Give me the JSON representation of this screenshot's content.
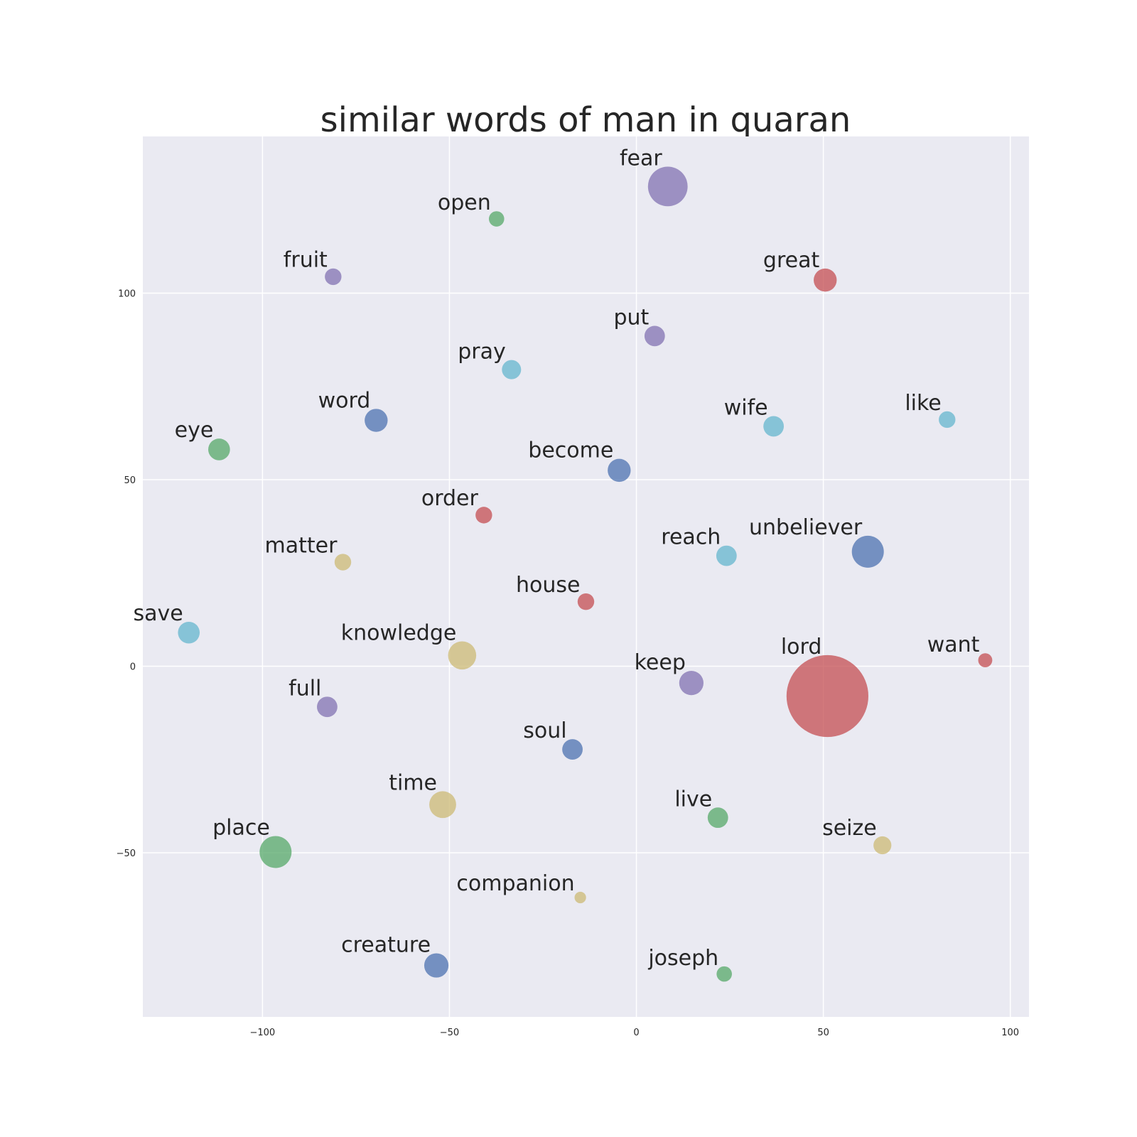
{
  "chart_data": {
    "type": "scatter",
    "title": "similar words of man in quaran",
    "xlabel": "",
    "ylabel": "",
    "xlim": [
      -132,
      105
    ],
    "ylim": [
      -94,
      142
    ],
    "x_ticks": [
      -100,
      -50,
      0,
      50,
      100
    ],
    "y_ticks": [
      -50,
      0,
      50,
      100
    ],
    "x_tick_labels": [
      "−100",
      "−50",
      "0",
      "50",
      "100"
    ],
    "y_tick_labels": [
      "−50",
      "0",
      "50",
      "100"
    ],
    "grid": true,
    "colors": {
      "blue": "#4c72b0",
      "green": "#55a868",
      "red": "#c44e52",
      "purple": "#8172b2",
      "yellow": "#ccb974",
      "cyan": "#64b5cd",
      "background": "#eaeaf2",
      "grid": "#ffffff",
      "text": "#262626"
    },
    "points": [
      {
        "label": "fear",
        "x": 8.4,
        "y": 128.6,
        "size": 3.1,
        "color": "purple"
      },
      {
        "label": "open",
        "x": -37.4,
        "y": 119.9,
        "size": 1.2,
        "color": "green"
      },
      {
        "label": "fruit",
        "x": -81.1,
        "y": 104.4,
        "size": 1.3,
        "color": "purple"
      },
      {
        "label": "great",
        "x": 50.5,
        "y": 103.5,
        "size": 1.8,
        "color": "red"
      },
      {
        "label": "put",
        "x": 4.9,
        "y": 88.5,
        "size": 1.6,
        "color": "purple"
      },
      {
        "label": "pray",
        "x": -33.4,
        "y": 79.5,
        "size": 1.5,
        "color": "cyan"
      },
      {
        "label": "word",
        "x": -69.6,
        "y": 65.9,
        "size": 1.8,
        "color": "blue"
      },
      {
        "label": "wife",
        "x": 36.7,
        "y": 64.3,
        "size": 1.6,
        "color": "cyan"
      },
      {
        "label": "like",
        "x": 83.1,
        "y": 66.1,
        "size": 1.3,
        "color": "cyan"
      },
      {
        "label": "eye",
        "x": -111.6,
        "y": 58.1,
        "size": 1.7,
        "color": "green"
      },
      {
        "label": "become",
        "x": -4.6,
        "y": 52.5,
        "size": 1.8,
        "color": "blue"
      },
      {
        "label": "order",
        "x": -40.8,
        "y": 40.5,
        "size": 1.3,
        "color": "red"
      },
      {
        "label": "matter",
        "x": -78.5,
        "y": 27.9,
        "size": 1.3,
        "color": "yellow"
      },
      {
        "label": "reach",
        "x": 24.1,
        "y": 29.6,
        "size": 1.6,
        "color": "cyan"
      },
      {
        "label": "unbeliever",
        "x": 61.9,
        "y": 30.7,
        "size": 2.5,
        "color": "blue"
      },
      {
        "label": "house",
        "x": -13.5,
        "y": 17.3,
        "size": 1.3,
        "color": "red"
      },
      {
        "label": "save",
        "x": -119.7,
        "y": 9.0,
        "size": 1.7,
        "color": "cyan"
      },
      {
        "label": "knowledge",
        "x": -46.6,
        "y": 2.9,
        "size": 2.2,
        "color": "yellow"
      },
      {
        "label": "want",
        "x": 93.3,
        "y": 1.6,
        "size": 1.1,
        "color": "red"
      },
      {
        "label": "keep",
        "x": 14.7,
        "y": -4.5,
        "size": 1.9,
        "color": "purple"
      },
      {
        "label": "lord",
        "x": 51.1,
        "y": -8.0,
        "size": 6.4,
        "color": "red"
      },
      {
        "label": "full",
        "x": -82.7,
        "y": -10.9,
        "size": 1.6,
        "color": "purple"
      },
      {
        "label": "soul",
        "x": -17.1,
        "y": -22.3,
        "size": 1.6,
        "color": "blue"
      },
      {
        "label": "time",
        "x": -51.8,
        "y": -37.1,
        "size": 2.1,
        "color": "yellow"
      },
      {
        "label": "live",
        "x": 21.8,
        "y": -40.6,
        "size": 1.6,
        "color": "green"
      },
      {
        "label": "seize",
        "x": 65.8,
        "y": -48.0,
        "size": 1.4,
        "color": "yellow"
      },
      {
        "label": "place",
        "x": -96.5,
        "y": -49.8,
        "size": 2.5,
        "color": "green"
      },
      {
        "label": "companion",
        "x": -15.0,
        "y": -62.0,
        "size": 0.9,
        "color": "yellow"
      },
      {
        "label": "creature",
        "x": -53.5,
        "y": -80.2,
        "size": 1.9,
        "color": "blue"
      },
      {
        "label": "joseph",
        "x": 23.5,
        "y": -82.5,
        "size": 1.2,
        "color": "green"
      }
    ]
  }
}
